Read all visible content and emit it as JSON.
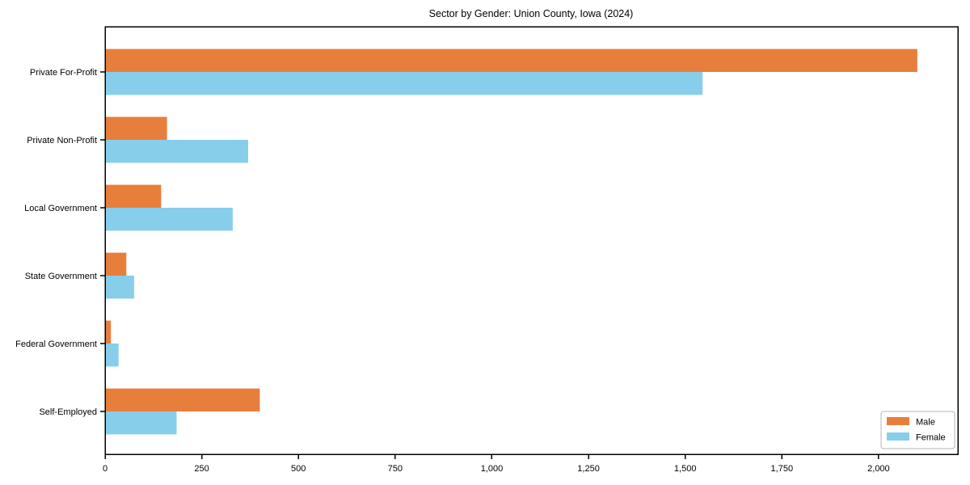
{
  "chart_data": {
    "type": "bar",
    "orientation": "horizontal",
    "title": "Sector by Gender: Union County, Iowa (2024)",
    "categories": [
      "Private For-Profit",
      "Private Non-Profit",
      "Local Government",
      "State Government",
      "Federal Government",
      "Self-Employed"
    ],
    "series": [
      {
        "name": "Male",
        "color": "#E87E3C",
        "values": [
          2100,
          160,
          145,
          55,
          15,
          400
        ]
      },
      {
        "name": "Female",
        "color": "#87CEEB",
        "values": [
          1545,
          370,
          330,
          75,
          35,
          185
        ]
      }
    ],
    "xlabel": "",
    "ylabel": "",
    "xlim": [
      0,
      2205
    ],
    "x_ticks": [
      0,
      250,
      500,
      750,
      1000,
      1250,
      1500,
      1750,
      2000
    ],
    "x_tick_labels": [
      "0",
      "250",
      "500",
      "750",
      "1,000",
      "1,250",
      "1,500",
      "1,750",
      "2,000"
    ],
    "grid": false,
    "legend_position": "lower right",
    "colors": {
      "axis": "#000000",
      "text": "#000000",
      "background": "#ffffff",
      "legend_border": "#b4b4b4"
    }
  }
}
